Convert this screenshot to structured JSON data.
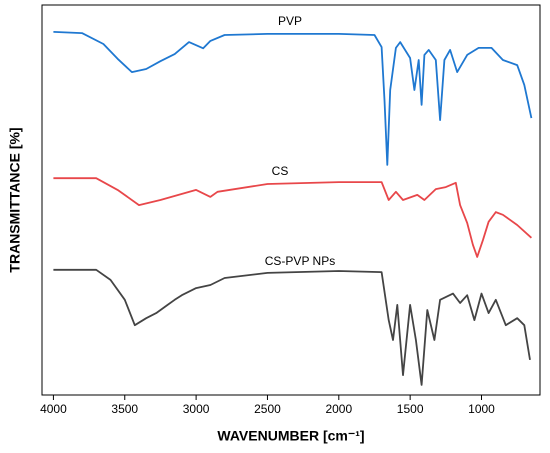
{
  "chart_data": {
    "type": "line",
    "xlabel": "WAVENUMBER [cm⁻¹]",
    "ylabel": "TRANSMITTANCE [%]",
    "xlim": [
      4080,
      590
    ],
    "ylim": [
      0,
      100
    ],
    "xticks": [
      4000,
      3500,
      3000,
      2500,
      2000,
      1500,
      1000
    ],
    "series": [
      {
        "name": "PVP",
        "color": "#1f78d1",
        "x": [
          4000,
          3800,
          3650,
          3550,
          3450,
          3350,
          3250,
          3150,
          3050,
          2950,
          2900,
          2800,
          2500,
          2000,
          1750,
          1700,
          1680,
          1660,
          1640,
          1600,
          1570,
          1500,
          1470,
          1440,
          1420,
          1400,
          1370,
          1320,
          1290,
          1260,
          1220,
          1170,
          1100,
          1020,
          930,
          850,
          750,
          700,
          650
        ],
        "values": [
          93.1,
          92.8,
          90.0,
          86.2,
          82.8,
          83.6,
          85.6,
          87.4,
          90.5,
          88.9,
          90.8,
          92.3,
          92.6,
          92.6,
          92.3,
          89.2,
          75.6,
          59.0,
          78.2,
          89.0,
          90.5,
          86.4,
          78.2,
          85.9,
          74.4,
          87.2,
          88.5,
          85.9,
          70.5,
          85.9,
          88.5,
          82.8,
          87.2,
          89.0,
          89.0,
          85.9,
          84.6,
          79.5,
          71.0
        ]
      },
      {
        "name": "CS",
        "color": "#e8474a",
        "x": [
          4000,
          3700,
          3550,
          3400,
          3250,
          3000,
          2900,
          2850,
          2500,
          2000,
          1700,
          1650,
          1600,
          1550,
          1450,
          1400,
          1320,
          1250,
          1180,
          1150,
          1100,
          1060,
          1030,
          990,
          950,
          900,
          850,
          750,
          650
        ],
        "values": [
          55.6,
          55.6,
          52.6,
          48.7,
          50.0,
          52.6,
          50.8,
          52.1,
          54.1,
          54.6,
          54.6,
          50.0,
          52.1,
          50.0,
          51.3,
          50.0,
          52.8,
          53.3,
          54.4,
          48.7,
          44.1,
          38.5,
          35.4,
          39.7,
          44.4,
          46.9,
          46.2,
          43.6,
          40.3
        ]
      },
      {
        "name": "CS-PVP NPs",
        "color": "#444444",
        "x": [
          4000,
          3700,
          3600,
          3500,
          3430,
          3350,
          3280,
          3200,
          3150,
          3100,
          3000,
          2900,
          2800,
          2500,
          2000,
          1700,
          1650,
          1620,
          1590,
          1550,
          1500,
          1460,
          1420,
          1380,
          1330,
          1290,
          1200,
          1150,
          1100,
          1050,
          1000,
          950,
          900,
          830,
          750,
          700,
          660
        ],
        "values": [
          32.1,
          32.1,
          29.5,
          24.4,
          17.9,
          19.7,
          21.0,
          23.1,
          24.4,
          25.6,
          27.4,
          28.2,
          30.0,
          31.3,
          31.8,
          31.5,
          19.2,
          14.1,
          23.1,
          5.1,
          23.1,
          14.1,
          2.6,
          21.8,
          14.1,
          24.4,
          26.0,
          23.6,
          25.6,
          19.2,
          26.0,
          21.0,
          24.4,
          17.9,
          19.7,
          17.9,
          9.0
        ]
      }
    ]
  }
}
